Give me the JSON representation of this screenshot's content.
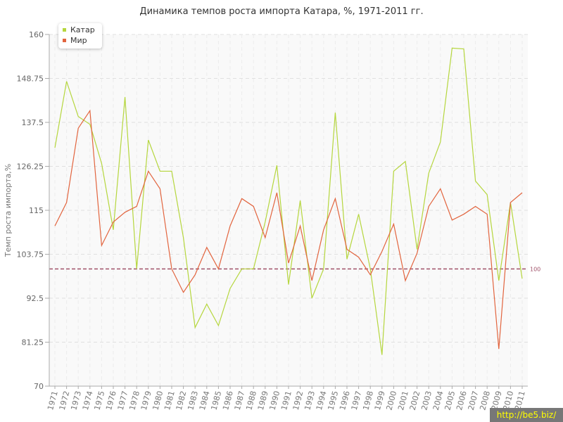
{
  "chart_data": {
    "type": "line",
    "title": "Динамика темпов роста импорта Катара, %, 1971-2011 гг.",
    "xlabel": "",
    "ylabel": "Темп роста импорта,%",
    "ylim": [
      70,
      160
    ],
    "yticks": [
      "70",
      "81.25",
      "92.5",
      "103.75",
      "115",
      "126.25",
      "137.5",
      "148.75",
      "160"
    ],
    "categories": [
      "1971",
      "1972",
      "1973",
      "1974",
      "1975",
      "1976",
      "1977",
      "1978",
      "1979",
      "1980",
      "1981",
      "1982",
      "1983",
      "1984",
      "1985",
      "1986",
      "1987",
      "1988",
      "1989",
      "1990",
      "1991",
      "1992",
      "1993",
      "1994",
      "1995",
      "1996",
      "1997",
      "1998",
      "1999",
      "2000",
      "2001",
      "2002",
      "2003",
      "2004",
      "2005",
      "2006",
      "2007",
      "2008",
      "2009",
      "2010",
      "2011"
    ],
    "series": [
      {
        "name": "Катар",
        "color": "#b5d63d",
        "values": [
          131,
          148,
          139,
          137,
          127,
          110,
          144,
          100,
          133,
          125,
          125,
          108,
          85,
          91,
          85.5,
          95,
          100,
          100,
          112,
          126.5,
          96,
          117.5,
          92.5,
          100,
          140,
          102.5,
          114,
          100,
          78,
          125,
          127.5,
          105,
          124.5,
          132.5,
          156.5,
          156.3,
          122.5,
          119,
          97,
          117,
          97.5
        ]
      },
      {
        "name": "Мир",
        "color": "#e2643e",
        "values": [
          111,
          117,
          136,
          140.5,
          106,
          112,
          114.5,
          116,
          125,
          120.5,
          100,
          94,
          98.5,
          105.5,
          100,
          111,
          118,
          116,
          108,
          119.5,
          101.5,
          111,
          97,
          110,
          118,
          105,
          103,
          98.5,
          104.5,
          111.5,
          97,
          104,
          116,
          120.5,
          112.5,
          114,
          116,
          114,
          79.5,
          117,
          119.5
        ]
      }
    ],
    "reference_line": {
      "value": 100,
      "label": "100",
      "color": "#a0526a"
    },
    "grid": true,
    "legend_position": "top-left"
  },
  "watermark": "http://be5.biz/"
}
